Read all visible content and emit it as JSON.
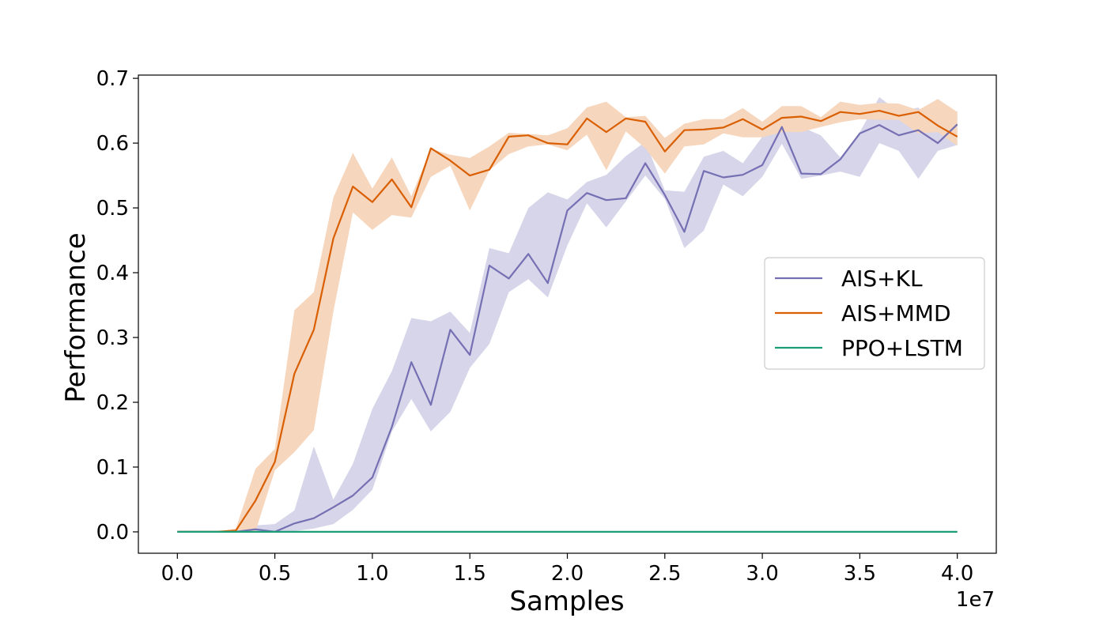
{
  "chart_data": {
    "type": "line",
    "title": "",
    "xlabel": "Samples",
    "ylabel": "Performance",
    "x_offset_text": "1e7",
    "xlim": [
      -0.2,
      4.2
    ],
    "ylim": [
      -0.033,
      0.705
    ],
    "x_ticks": [
      0.0,
      0.5,
      1.0,
      1.5,
      2.0,
      2.5,
      3.0,
      3.5,
      4.0
    ],
    "x_tick_labels": [
      "0.0",
      "0.5",
      "1.0",
      "1.5",
      "2.0",
      "2.5",
      "3.0",
      "3.5",
      "4.0"
    ],
    "y_ticks": [
      0.0,
      0.1,
      0.2,
      0.3,
      0.4,
      0.5,
      0.6,
      0.7
    ],
    "y_tick_labels": [
      "0.0",
      "0.1",
      "0.2",
      "0.3",
      "0.4",
      "0.5",
      "0.6",
      "0.7"
    ],
    "grid": false,
    "legend_position": "center-right",
    "x": [
      0.0,
      0.1,
      0.2,
      0.3,
      0.4,
      0.5,
      0.6,
      0.7,
      0.8,
      0.9,
      1.0,
      1.1,
      1.2,
      1.3,
      1.4,
      1.5,
      1.6,
      1.7,
      1.8,
      1.9,
      2.0,
      2.1,
      2.2,
      2.3,
      2.4,
      2.5,
      2.6,
      2.7,
      2.8,
      2.9,
      3.0,
      3.1,
      3.2,
      3.3,
      3.4,
      3.5,
      3.6,
      3.7,
      3.8,
      3.9,
      4.0
    ],
    "series": [
      {
        "name": "AIS+KL",
        "color": "#7570b3",
        "fill_color": "#d6d5e9",
        "values": [
          0.0,
          0.0,
          0.0,
          0.0,
          0.004,
          0.0,
          0.013,
          0.021,
          0.038,
          0.056,
          0.084,
          0.162,
          0.262,
          0.196,
          0.312,
          0.273,
          0.411,
          0.391,
          0.429,
          0.384,
          0.496,
          0.523,
          0.512,
          0.515,
          0.569,
          0.52,
          0.463,
          0.557,
          0.547,
          0.551,
          0.566,
          0.625,
          0.553,
          0.552,
          0.575,
          0.615,
          0.628,
          0.612,
          0.62,
          0.6,
          0.629
        ],
        "lower": [
          0.0,
          0.0,
          0.0,
          0.0,
          0.0,
          0.0,
          0.001,
          0.005,
          0.012,
          0.034,
          0.065,
          0.155,
          0.205,
          0.155,
          0.185,
          0.253,
          0.29,
          0.37,
          0.39,
          0.362,
          0.442,
          0.507,
          0.47,
          0.51,
          0.55,
          0.514,
          0.438,
          0.465,
          0.536,
          0.518,
          0.548,
          0.599,
          0.545,
          0.55,
          0.556,
          0.548,
          0.6,
          0.588,
          0.545,
          0.588,
          0.597
        ],
        "upper": [
          0.0,
          0.0,
          0.0,
          0.0,
          0.01,
          0.012,
          0.033,
          0.132,
          0.05,
          0.105,
          0.19,
          0.248,
          0.33,
          0.325,
          0.34,
          0.307,
          0.438,
          0.43,
          0.5,
          0.524,
          0.513,
          0.54,
          0.551,
          0.58,
          0.602,
          0.527,
          0.525,
          0.579,
          0.588,
          0.569,
          0.61,
          0.64,
          0.625,
          0.612,
          0.578,
          0.617,
          0.671,
          0.648,
          0.655,
          0.62,
          0.65
        ]
      },
      {
        "name": "AIS+MMD",
        "color": "#d95f02",
        "fill_color": "#f6d6bd",
        "values": [
          0.0,
          0.0,
          0.0,
          0.002,
          0.048,
          0.108,
          0.244,
          0.312,
          0.453,
          0.533,
          0.509,
          0.544,
          0.501,
          0.592,
          0.573,
          0.55,
          0.559,
          0.61,
          0.612,
          0.6,
          0.598,
          0.638,
          0.617,
          0.638,
          0.633,
          0.587,
          0.62,
          0.621,
          0.624,
          0.637,
          0.621,
          0.639,
          0.641,
          0.634,
          0.648,
          0.645,
          0.65,
          0.642,
          0.648,
          0.627,
          0.61
        ],
        "lower": [
          0.0,
          0.0,
          0.0,
          0.0,
          0.0,
          0.095,
          0.123,
          0.157,
          0.34,
          0.493,
          0.466,
          0.489,
          0.485,
          0.548,
          0.565,
          0.496,
          0.558,
          0.583,
          0.595,
          0.598,
          0.589,
          0.613,
          0.558,
          0.618,
          0.592,
          0.553,
          0.595,
          0.598,
          0.615,
          0.609,
          0.609,
          0.617,
          0.617,
          0.625,
          0.632,
          0.637,
          0.636,
          0.636,
          0.615,
          0.617,
          0.596
        ],
        "upper": [
          0.0,
          0.0,
          0.0,
          0.005,
          0.097,
          0.128,
          0.342,
          0.37,
          0.516,
          0.585,
          0.53,
          0.578,
          0.518,
          0.591,
          0.582,
          0.577,
          0.595,
          0.616,
          0.614,
          0.612,
          0.623,
          0.655,
          0.664,
          0.64,
          0.642,
          0.608,
          0.63,
          0.637,
          0.637,
          0.654,
          0.633,
          0.657,
          0.657,
          0.64,
          0.664,
          0.659,
          0.662,
          0.661,
          0.651,
          0.668,
          0.648
        ]
      },
      {
        "name": "PPO+LSTM",
        "color": "#1b9e77",
        "fill_color": "#bfe3d8",
        "values": [
          0.0,
          0.0,
          0.0,
          0.0,
          0.0,
          0.0,
          0.0,
          0.0,
          0.0,
          0.0,
          0.0,
          0.0,
          0.0,
          0.0,
          0.0,
          0.0,
          0.0,
          0.0,
          0.0,
          0.0,
          0.0,
          0.0,
          0.0,
          0.0,
          0.0,
          0.0,
          0.0,
          0.0,
          0.0,
          0.0,
          0.0,
          0.0,
          0.0,
          0.0,
          0.0,
          0.0,
          0.0,
          0.0,
          0.0,
          0.0,
          0.0
        ],
        "lower": [
          0.0,
          0.0,
          0.0,
          0.0,
          0.0,
          0.0,
          0.0,
          0.0,
          0.0,
          0.0,
          0.0,
          0.0,
          0.0,
          0.0,
          0.0,
          0.0,
          0.0,
          0.0,
          0.0,
          0.0,
          0.0,
          0.0,
          0.0,
          0.0,
          0.0,
          0.0,
          0.0,
          0.0,
          0.0,
          0.0,
          0.0,
          0.0,
          0.0,
          0.0,
          0.0,
          0.0,
          0.0,
          0.0,
          0.0,
          0.0,
          0.0
        ],
        "upper": [
          0.0,
          0.0,
          0.0,
          0.001,
          0.001,
          0.001,
          0.001,
          0.001,
          0.001,
          0.001,
          0.001,
          0.001,
          0.001,
          0.001,
          0.001,
          0.001,
          0.001,
          0.001,
          0.001,
          0.001,
          0.001,
          0.001,
          0.001,
          0.001,
          0.001,
          0.001,
          0.001,
          0.001,
          0.001,
          0.001,
          0.001,
          0.001,
          0.001,
          0.001,
          0.001,
          0.001,
          0.001,
          0.001,
          0.001,
          0.001,
          0.001
        ]
      }
    ]
  }
}
